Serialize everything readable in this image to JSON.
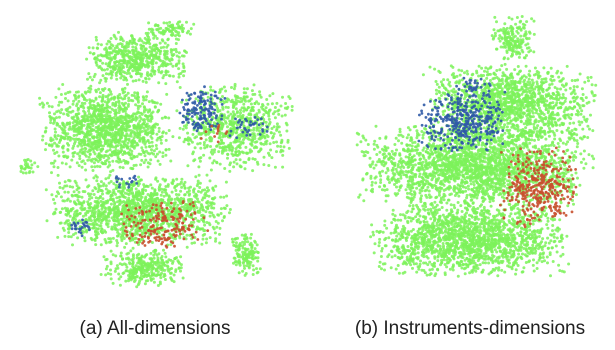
{
  "colors": {
    "green": "#7cf25a",
    "blue": "#2f5aa6",
    "red": "#c8502e",
    "background": "#ffffff"
  },
  "chart_data": [
    {
      "type": "scatter",
      "caption": "(a) All-dimensions",
      "title": "",
      "xlabel": "",
      "ylabel": "",
      "axes_visible": false,
      "grid": false,
      "legend": "none",
      "series": [
        {
          "color": "green",
          "regions": [
            {
              "x": [
                0.45,
                0.62
              ],
              "y": [
                0.04,
                0.1
              ],
              "density": 0.8
            },
            {
              "x": [
                0.25,
                0.6
              ],
              "y": [
                0.08,
                0.26
              ],
              "density": 0.9
            },
            {
              "x": [
                0.1,
                0.55
              ],
              "y": [
                0.25,
                0.55
              ],
              "density": 0.95
            },
            {
              "x": [
                0.55,
                0.95
              ],
              "y": [
                0.25,
                0.55
              ],
              "density": 0.6
            },
            {
              "x": [
                0.12,
                0.75
              ],
              "y": [
                0.55,
                0.8
              ],
              "density": 0.9
            },
            {
              "x": [
                0.3,
                0.6
              ],
              "y": [
                0.8,
                0.93
              ],
              "density": 0.8
            },
            {
              "x": [
                0.03,
                0.1
              ],
              "y": [
                0.5,
                0.56
              ],
              "density": 0.7
            },
            {
              "x": [
                0.74,
                0.84
              ],
              "y": [
                0.74,
                0.9
              ],
              "density": 0.9
            }
          ]
        },
        {
          "color": "blue",
          "regions": [
            {
              "x": [
                0.56,
                0.72
              ],
              "y": [
                0.26,
                0.42
              ],
              "density": 0.55
            },
            {
              "x": [
                0.72,
                0.88
              ],
              "y": [
                0.35,
                0.44
              ],
              "density": 0.25
            },
            {
              "x": [
                0.2,
                0.28
              ],
              "y": [
                0.7,
                0.77
              ],
              "density": 0.45
            },
            {
              "x": [
                0.34,
                0.44
              ],
              "y": [
                0.55,
                0.62
              ],
              "density": 0.25
            }
          ]
        },
        {
          "color": "red",
          "regions": [
            {
              "x": [
                0.35,
                0.68
              ],
              "y": [
                0.64,
                0.8
              ],
              "density": 0.35
            },
            {
              "x": [
                0.6,
                0.75
              ],
              "y": [
                0.38,
                0.46
              ],
              "density": 0.1
            }
          ]
        }
      ]
    },
    {
      "type": "scatter",
      "caption": "(b) Instruments-dimensions",
      "title": "",
      "xlabel": "",
      "ylabel": "",
      "axes_visible": false,
      "grid": false,
      "legend": "none",
      "series": [
        {
          "color": "green",
          "regions": [
            {
              "x": [
                0.55,
                0.72
              ],
              "y": [
                0.03,
                0.18
              ],
              "density": 0.8
            },
            {
              "x": [
                0.3,
                0.95
              ],
              "y": [
                0.18,
                0.45
              ],
              "density": 0.85
            },
            {
              "x": [
                0.05,
                0.95
              ],
              "y": [
                0.38,
                0.65
              ],
              "density": 0.95
            },
            {
              "x": [
                0.1,
                0.85
              ],
              "y": [
                0.62,
                0.88
              ],
              "density": 0.95
            }
          ]
        },
        {
          "color": "blue",
          "regions": [
            {
              "x": [
                0.28,
                0.62
              ],
              "y": [
                0.26,
                0.48
              ],
              "density": 0.5
            },
            {
              "x": [
                0.42,
                0.56
              ],
              "y": [
                0.22,
                0.3
              ],
              "density": 0.3
            }
          ]
        },
        {
          "color": "red",
          "regions": [
            {
              "x": [
                0.58,
                0.88
              ],
              "y": [
                0.45,
                0.72
              ],
              "density": 0.45
            }
          ]
        }
      ]
    }
  ]
}
